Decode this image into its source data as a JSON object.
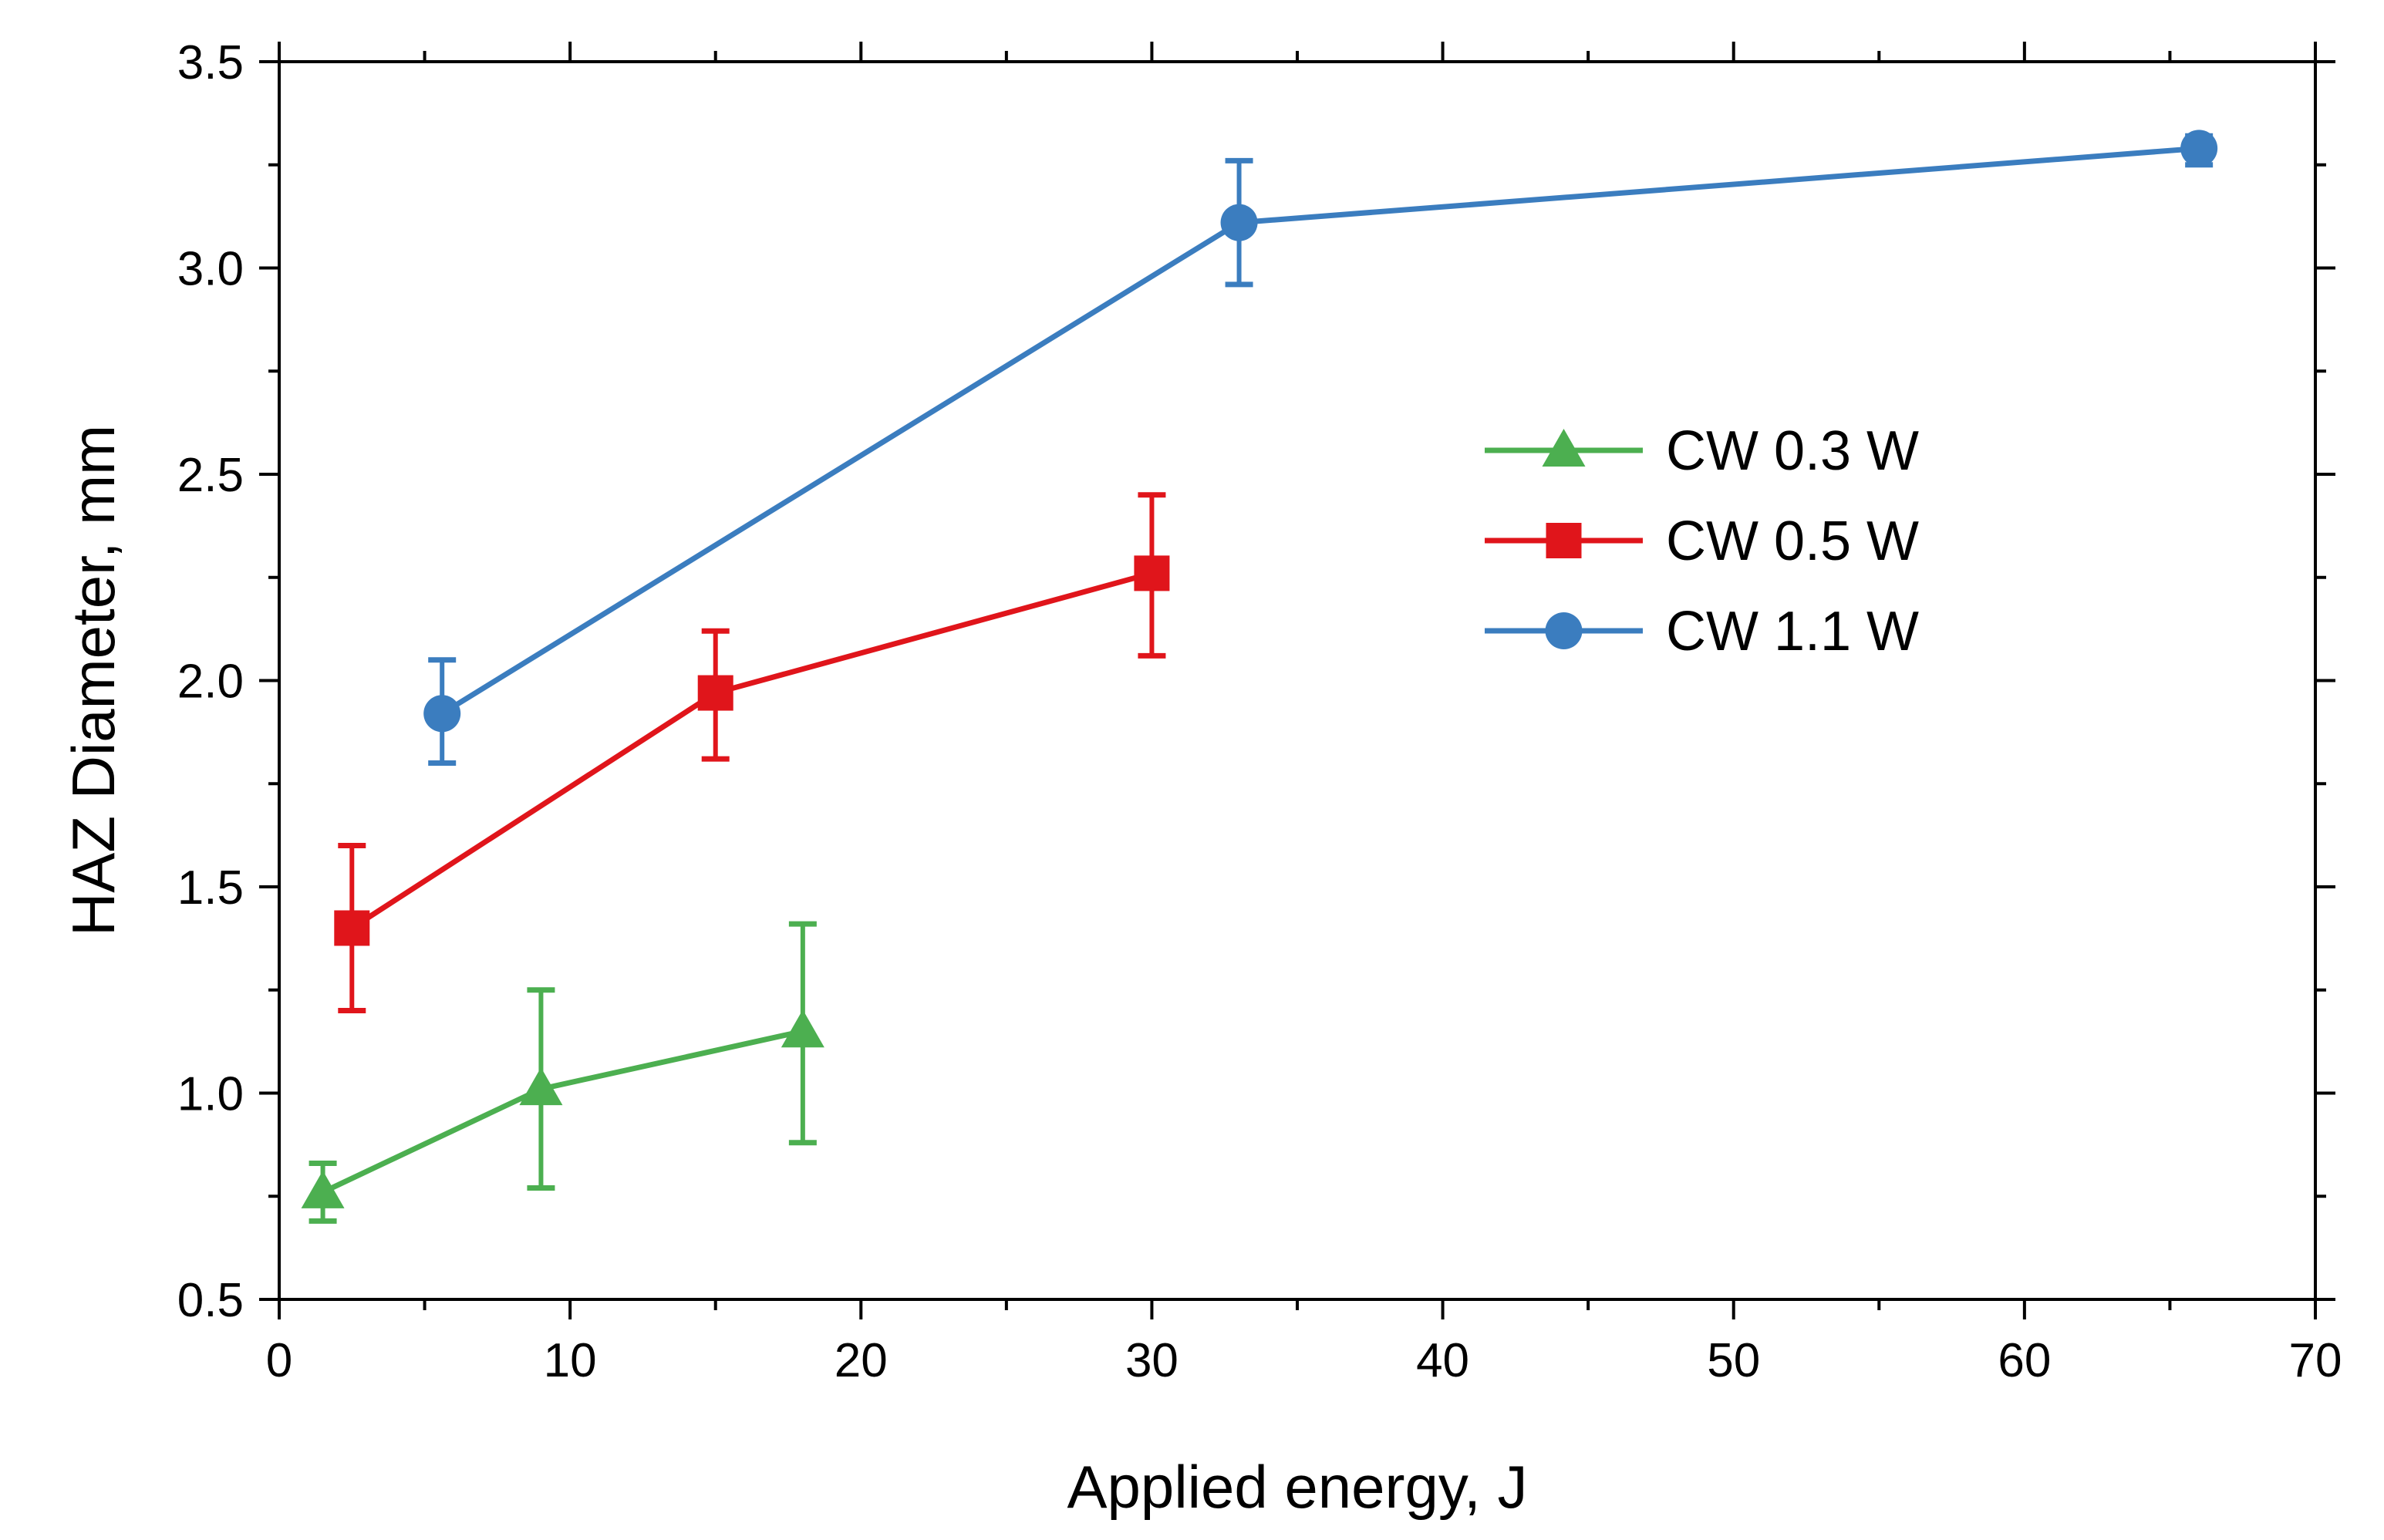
{
  "chart_data": {
    "type": "line",
    "title": "",
    "xlabel": "Applied energy, J",
    "ylabel": "HAZ Diameter, mm",
    "xlim": [
      0,
      70
    ],
    "ylim": [
      0.5,
      3.5
    ],
    "xticks": [
      "0",
      "10",
      "20",
      "30",
      "40",
      "50",
      "60",
      "70"
    ],
    "yticks": [
      "0.5",
      "1.0",
      "1.5",
      "2.0",
      "2.5",
      "3.0",
      "3.5"
    ],
    "legend_position": "center-right",
    "grid": false,
    "series": [
      {
        "name": "CW 0.3 W",
        "marker": "triangle",
        "color": "#4caf50",
        "points": [
          {
            "x": 1.5,
            "y": 0.76,
            "err_low": 0.69,
            "err_high": 0.83
          },
          {
            "x": 9,
            "y": 1.01,
            "err_low": 0.77,
            "err_high": 1.25
          },
          {
            "x": 18,
            "y": 1.15,
            "err_low": 0.88,
            "err_high": 1.41
          }
        ]
      },
      {
        "name": "CW 0.5 W",
        "marker": "square",
        "color": "#e0151b",
        "points": [
          {
            "x": 2.5,
            "y": 1.4,
            "err_low": 1.2,
            "err_high": 1.6
          },
          {
            "x": 15,
            "y": 1.97,
            "err_low": 1.81,
            "err_high": 2.12
          },
          {
            "x": 30,
            "y": 2.26,
            "err_low": 2.06,
            "err_high": 2.45
          }
        ]
      },
      {
        "name": "CW 1.1 W",
        "marker": "circle",
        "color": "#3b7dbf",
        "points": [
          {
            "x": 5.6,
            "y": 1.92,
            "err_low": 1.8,
            "err_high": 2.05
          },
          {
            "x": 33,
            "y": 3.11,
            "err_low": 2.96,
            "err_high": 3.26
          },
          {
            "x": 66,
            "y": 3.29,
            "err_low": 3.25,
            "err_high": 3.32
          }
        ]
      }
    ]
  }
}
